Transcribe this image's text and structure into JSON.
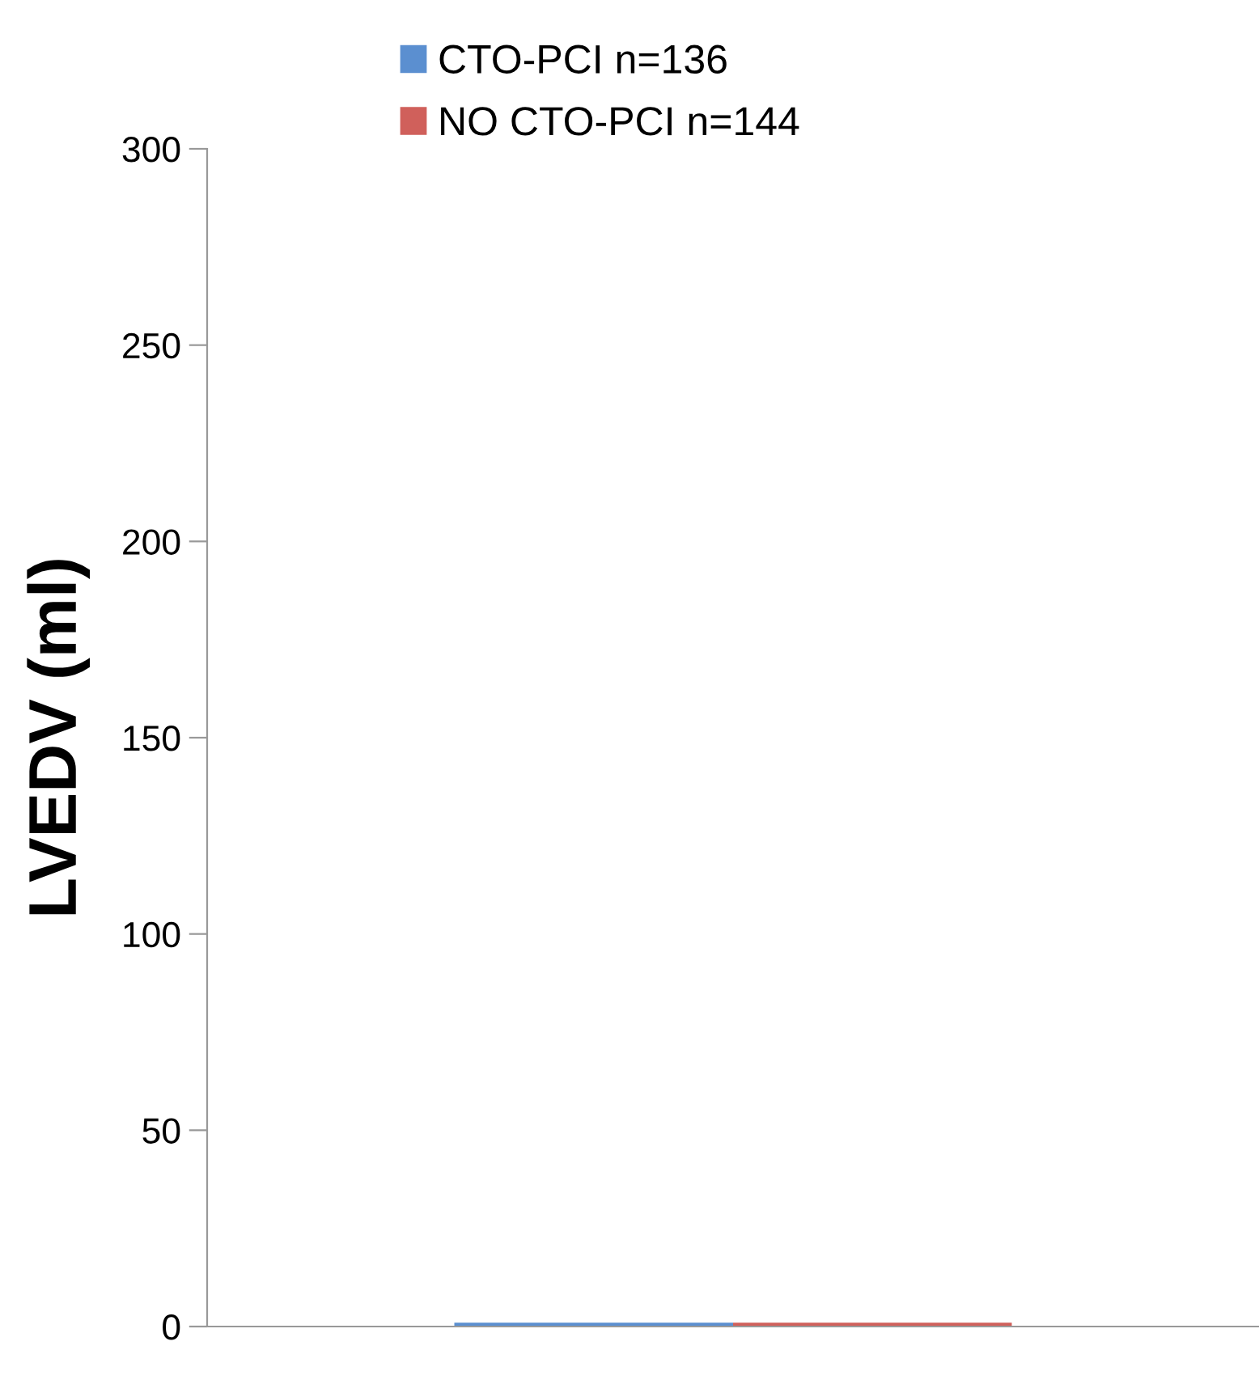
{
  "chart_data": {
    "type": "bar",
    "ylabel": "LVEDV (ml)",
    "categories": [
      null
    ],
    "series": [
      {
        "name": "CTO-PCI n=136",
        "color": "#5b8fd0",
        "values": [
          1
        ]
      },
      {
        "name": "NO CTO-PCI n=144",
        "color": "#d0605b",
        "values": [
          1
        ]
      }
    ],
    "ylim": [
      0,
      300
    ],
    "yticks": [
      0,
      50,
      100,
      150,
      200,
      250,
      300
    ],
    "grid": false,
    "legend": "top"
  }
}
